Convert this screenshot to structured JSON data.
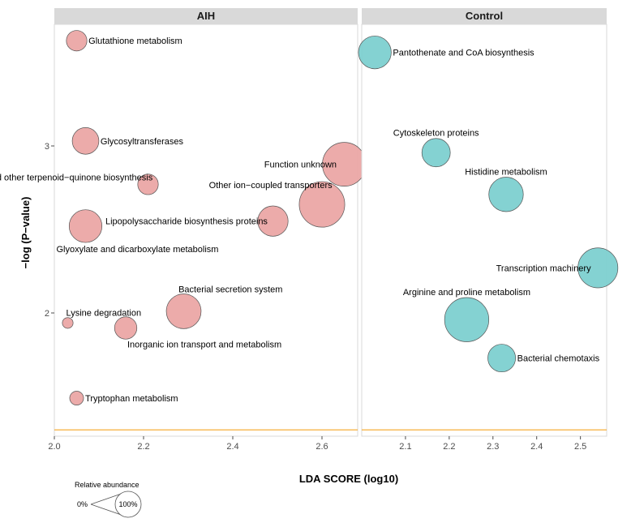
{
  "chart_data": {
    "type": "scatter",
    "xlabel": "LDA SCORE (log10)",
    "ylabel": "−log (P−value)",
    "y_ticks": [
      "2",
      "3"
    ],
    "threshold_y": 1.3,
    "threshold_color": "#f5a623",
    "legend": {
      "title": "Relative abundance",
      "min_label": "0%",
      "max_label": "100%"
    },
    "panels": [
      {
        "name": "AIH",
        "color": "#eba7a5",
        "xlim": [
          2.0,
          2.68
        ],
        "x_ticks": [
          "2.0",
          "2.2",
          "2.4",
          "2.6"
        ],
        "points": [
          {
            "label": "Glutathione metabolism",
            "x": 2.05,
            "y": 3.63,
            "size": 0.22,
            "label_pos": "right"
          },
          {
            "label": "Glycosyltransferases",
            "x": 2.07,
            "y": 3.03,
            "size": 0.37,
            "label_pos": "right"
          },
          {
            "label": "Function unknown",
            "x": 2.65,
            "y": 2.89,
            "size": 1.0,
            "label_pos": "left"
          },
          {
            "label": "Ubiquinone and other terpenoid−quinone biosynthesis",
            "x": 2.21,
            "y": 2.77,
            "size": 0.22,
            "label_pos": "top-left"
          },
          {
            "label": "Other ion−coupled transporters",
            "x": 2.6,
            "y": 2.65,
            "size": 1.08,
            "label_pos": "top-left"
          },
          {
            "label": "Lipopolysaccharide biosynthesis proteins",
            "x": 2.49,
            "y": 2.55,
            "size": 0.48,
            "label_pos": "left"
          },
          {
            "label": "Glyoxylate and dicarboxylate metabolism",
            "x": 2.07,
            "y": 2.52,
            "size": 0.56,
            "label_pos": "below"
          },
          {
            "label": "Bacterial secretion system",
            "x": 2.29,
            "y": 2.01,
            "size": 0.63,
            "label_pos": "top-right"
          },
          {
            "label": "Lysine degradation",
            "x": 2.03,
            "y": 1.94,
            "size": 0.06,
            "label_pos": "top-right"
          },
          {
            "label": "Inorganic ion transport and metabolism",
            "x": 2.16,
            "y": 1.91,
            "size": 0.26,
            "label_pos": "below-right"
          },
          {
            "label": "Tryptophan metabolism",
            "x": 2.05,
            "y": 1.49,
            "size": 0.1,
            "label_pos": "right"
          }
        ]
      },
      {
        "name": "Control",
        "color": "#7dd0d0",
        "xlim": [
          2.0,
          2.56
        ],
        "x_ticks": [
          "2.1",
          "2.2",
          "2.3",
          "2.4",
          "2.5"
        ],
        "points": [
          {
            "label": "Pantothenate and CoA biosynthesis",
            "x": 2.03,
            "y": 3.56,
            "size": 0.56,
            "label_pos": "right"
          },
          {
            "label": "Cytoskeleton proteins",
            "x": 2.17,
            "y": 2.96,
            "size": 0.42,
            "label_pos": "top"
          },
          {
            "label": "Histidine metabolism",
            "x": 2.33,
            "y": 2.71,
            "size": 0.62,
            "label_pos": "top"
          },
          {
            "label": "Transcription machinery",
            "x": 2.54,
            "y": 2.27,
            "size": 0.83,
            "label_pos": "left"
          },
          {
            "label": "Arginine and proline metabolism",
            "x": 2.24,
            "y": 1.96,
            "size": 1.02,
            "label_pos": "top"
          },
          {
            "label": "Bacterial chemotaxis",
            "x": 2.32,
            "y": 1.73,
            "size": 0.4,
            "label_pos": "right"
          }
        ]
      }
    ]
  }
}
